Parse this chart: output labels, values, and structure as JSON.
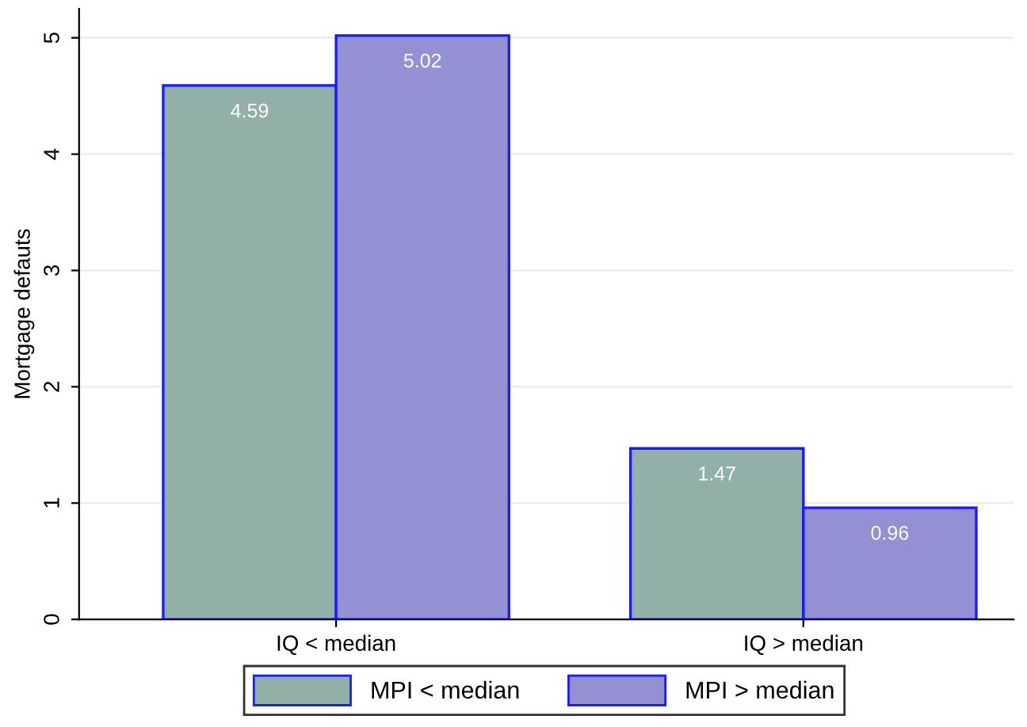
{
  "chart_data": {
    "type": "bar",
    "ylabel": "Mortgage defauts",
    "categories": [
      "IQ < median",
      "IQ > median"
    ],
    "series": [
      {
        "name": "MPI < median",
        "color": "#93b0a8",
        "values": [
          4.59,
          1.47
        ]
      },
      {
        "name": "MPI > median",
        "color": "#9490d4",
        "values": [
          5.02,
          0.96
        ]
      }
    ],
    "ylim": [
      0,
      5.25
    ],
    "yticks": [
      0,
      1,
      2,
      3,
      4,
      5
    ],
    "grid": "y",
    "legend": "bottom",
    "data_labels": true
  }
}
